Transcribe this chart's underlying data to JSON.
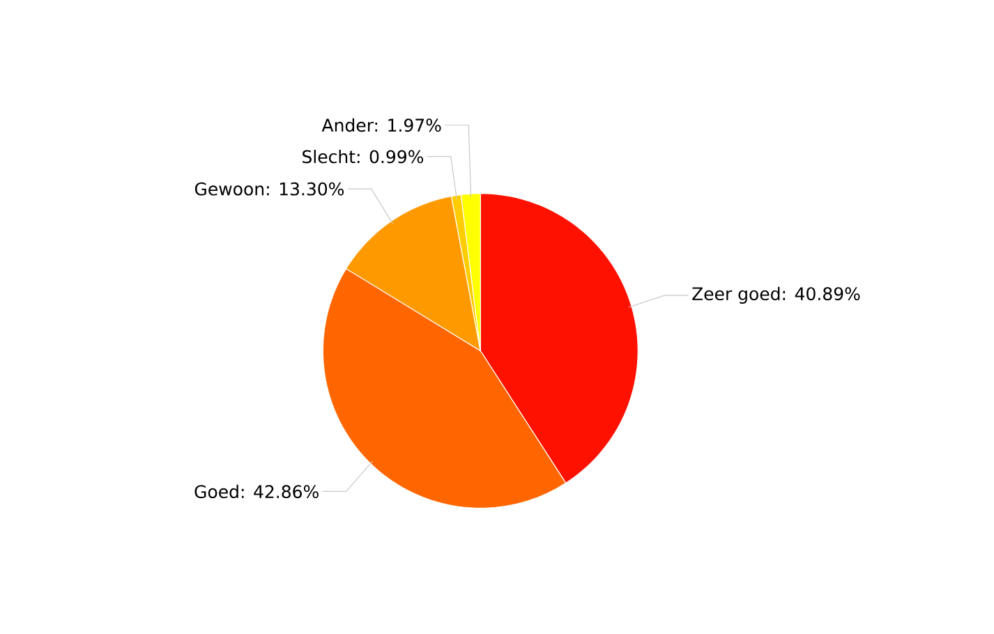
{
  "chart_data": {
    "type": "pie",
    "categories": [
      "Zeer goed: 40.89%",
      "Goed: 42.86%",
      "Gewoon: 13.30%",
      "Slecht: 0.99%",
      "Ander: 1.97%"
    ],
    "values": [
      40.89,
      42.86,
      13.3,
      0.99,
      1.97
    ],
    "colors": [
      "#ff1100",
      "#ff6600",
      "#ff9900",
      "#ffcc00",
      "#ffff00"
    ]
  }
}
